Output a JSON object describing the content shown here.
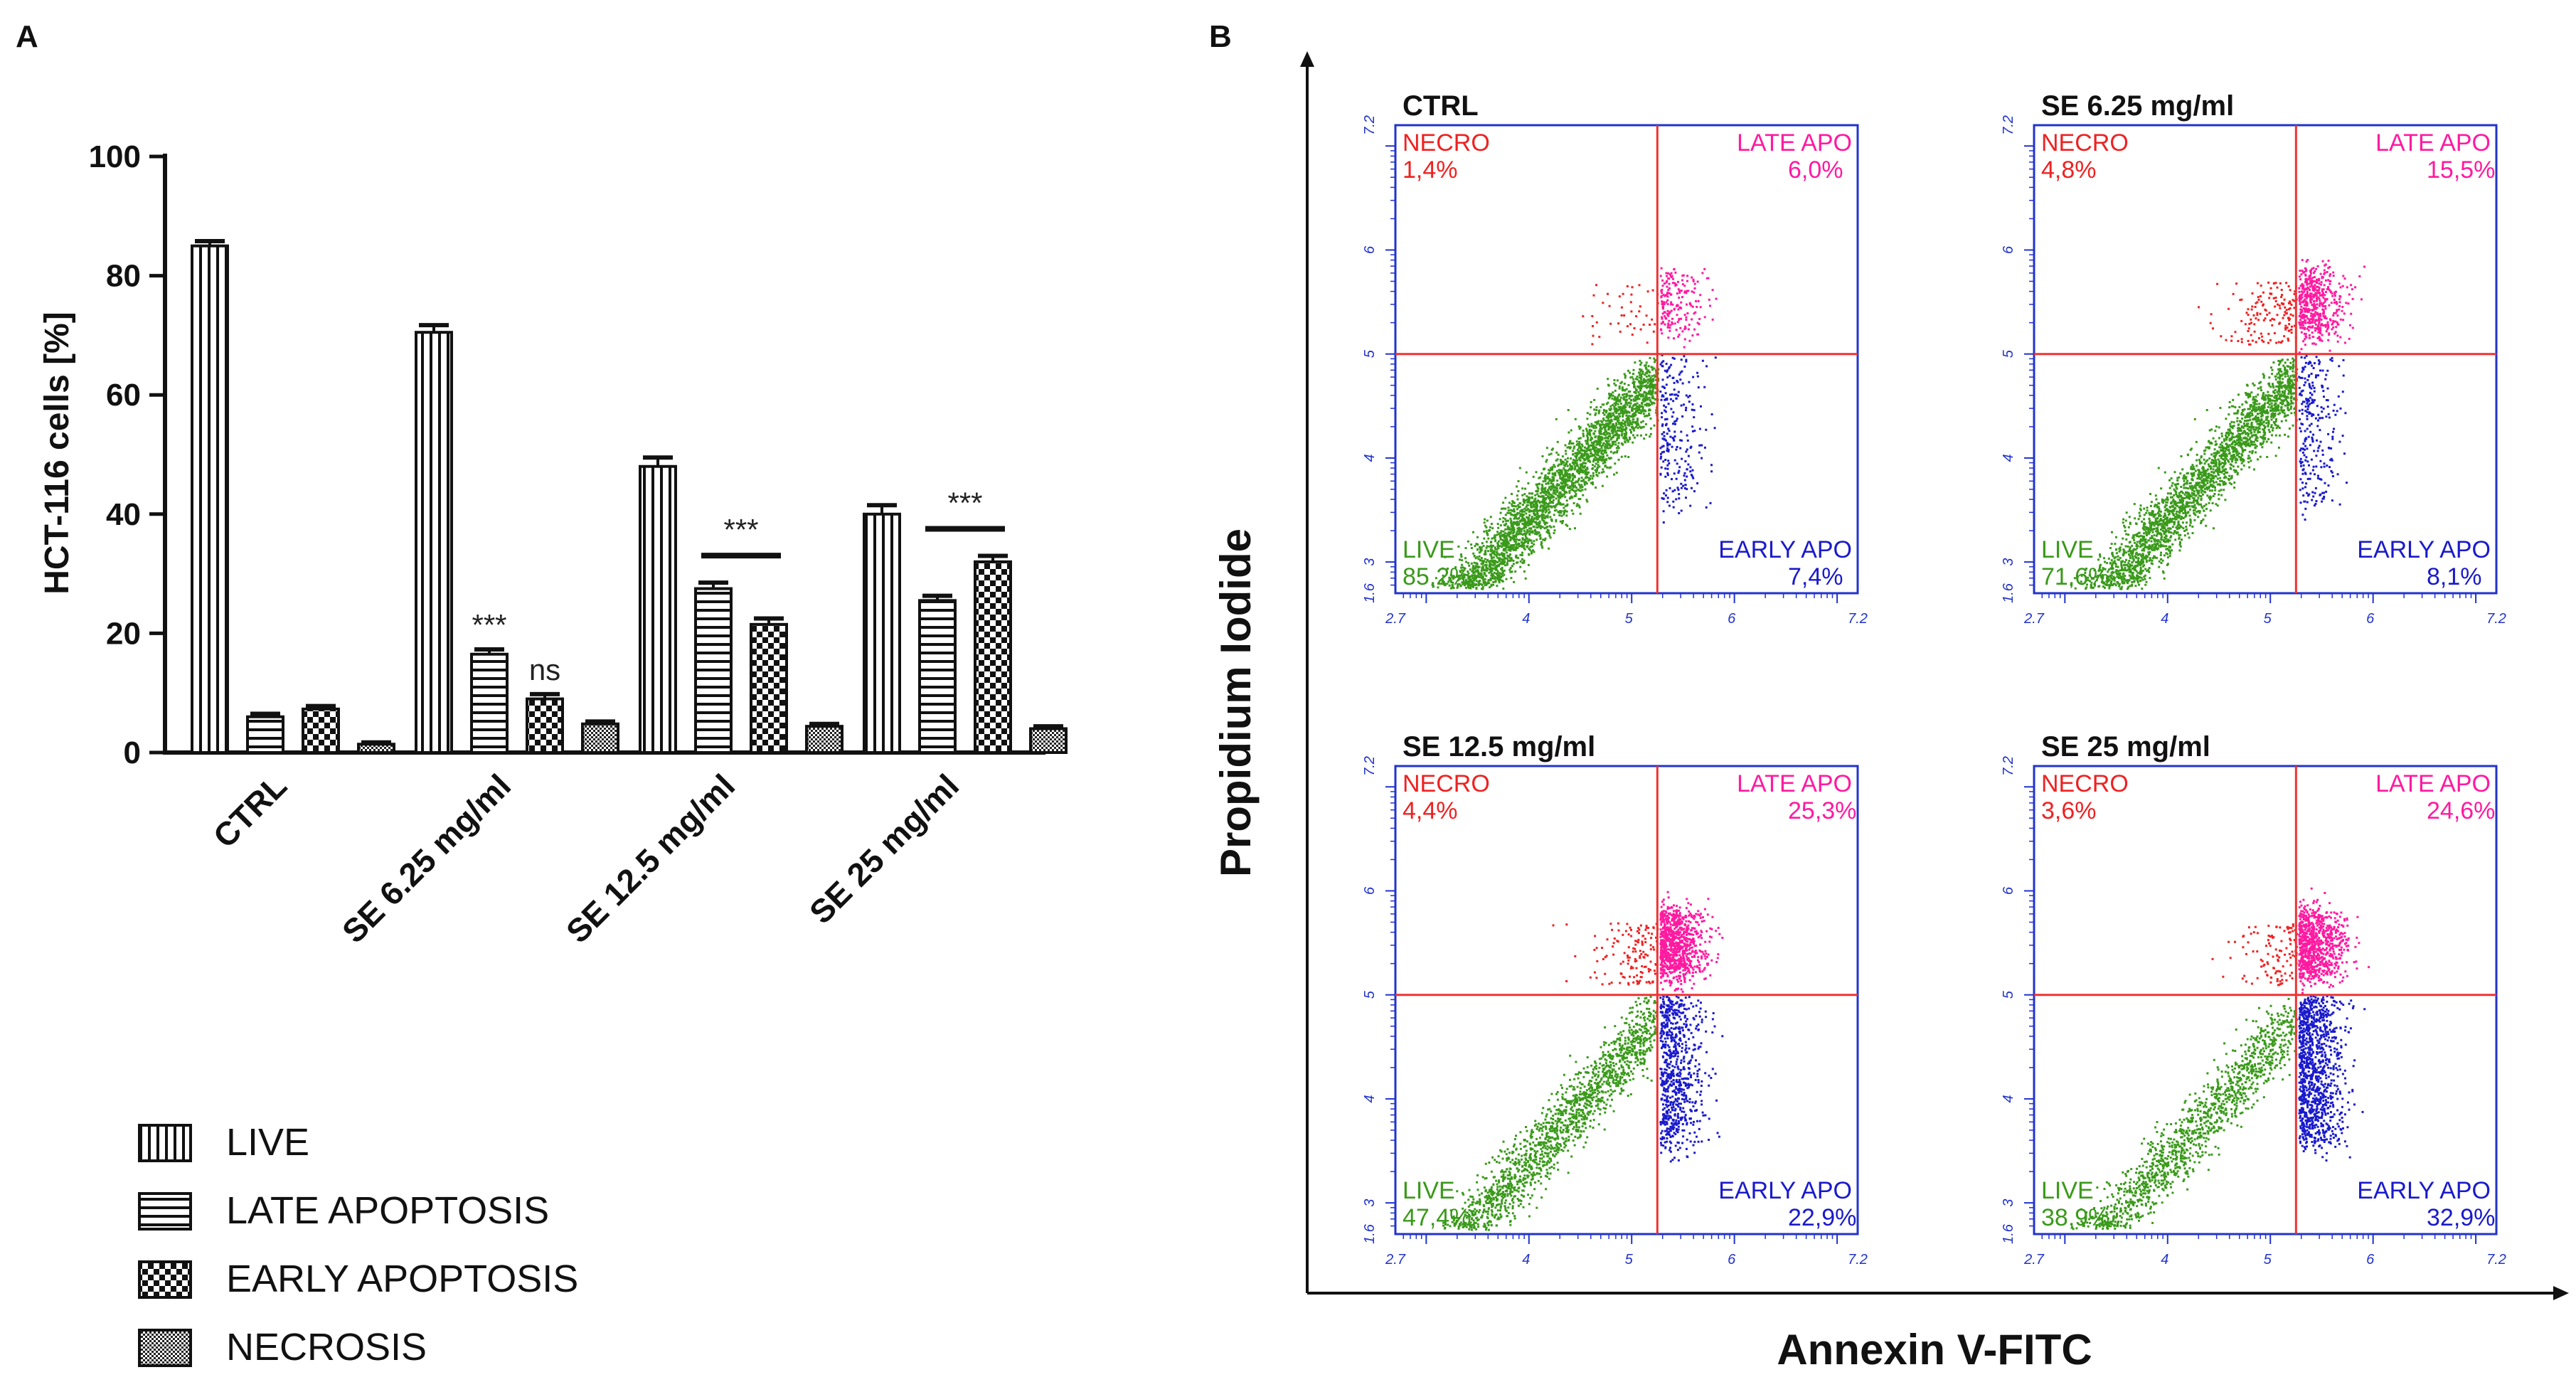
{
  "panels": {
    "a_label": "A",
    "b_label": "B"
  },
  "chart_data": [
    {
      "type": "bar",
      "title": "",
      "xlabel": "",
      "ylabel": "HCT-116 cells [%]",
      "ylim": [
        0,
        100
      ],
      "yticks": [
        "0",
        "20",
        "40",
        "60",
        "80",
        "100"
      ],
      "categories": [
        "CTRL",
        "SE 6.25 mg/ml",
        "SE 12.5 mg/ml",
        "SE 25 mg/ml"
      ],
      "series": [
        {
          "name": "LIVE",
          "pattern": "vertical",
          "values": [
            85,
            70.5,
            48,
            40
          ],
          "errors": [
            0.8,
            1.2,
            1.5,
            1.5
          ]
        },
        {
          "name": "LATE APOPTOSIS",
          "pattern": "horizontal",
          "values": [
            6,
            16.5,
            27.5,
            25.5
          ],
          "errors": [
            0.5,
            0.8,
            1.0,
            0.8
          ]
        },
        {
          "name": "EARLY APOPTOSIS",
          "pattern": "checker",
          "values": [
            7.3,
            9,
            21.5,
            32
          ],
          "errors": [
            0.5,
            0.8,
            1.0,
            1.0
          ]
        },
        {
          "name": "NECROSIS",
          "pattern": "fine",
          "values": [
            1.4,
            4.8,
            4.4,
            4
          ],
          "errors": [
            0.3,
            0.4,
            0.4,
            0.4
          ]
        }
      ],
      "annotations": [
        {
          "category": 1,
          "series": 1,
          "text": "***"
        },
        {
          "category": 1,
          "series": 2,
          "text": "ns"
        },
        {
          "category": 2,
          "series_span": [
            1,
            2
          ],
          "text": "***"
        },
        {
          "category": 3,
          "series_span": [
            1,
            2
          ],
          "text": "***"
        }
      ]
    },
    {
      "type": "scatter",
      "xlabel": "Annexin V-FITC",
      "ylabel": "Propidium Iodide",
      "axis_range": [
        2.7,
        7.2
      ],
      "gate": {
        "x": 5.25,
        "y": 5.0
      },
      "tick_labels": [
        "2.7",
        "4",
        "5",
        "6",
        "7.2"
      ],
      "y_tick_labels": [
        "1.6",
        "3",
        "4",
        "5",
        "6",
        "7.2"
      ],
      "colors": {
        "live": "#3a9a1a",
        "early": "#1a1acc",
        "late": "#ff1aa0",
        "necro": "#ee2222",
        "frame": "#2233cc",
        "gate": "#ee3333"
      },
      "plots": [
        {
          "title": "CTRL",
          "necro_label": "NECRO",
          "necro": "1,4%",
          "late_label": "LATE APO",
          "late": "6,0%",
          "live_label": "LIVE",
          "live": "85,2%",
          "early_label": "EARLY APO",
          "early": "7,4%"
        },
        {
          "title": "SE 6.25 mg/ml",
          "necro_label": "NECRO",
          "necro": "4,8%",
          "late_label": "LATE APO",
          "late": "15,5%",
          "live_label": "LIVE",
          "live": "71,6%",
          "early_label": "EARLY APO",
          "early": "8,1%"
        },
        {
          "title": "SE 12.5 mg/ml",
          "necro_label": "NECRO",
          "necro": "4,4%",
          "late_label": "LATE APO",
          "late": "25,3%",
          "live_label": "LIVE",
          "live": "47,4%",
          "early_label": "EARLY APO",
          "early": "22,9%"
        },
        {
          "title": "SE 25 mg/ml",
          "necro_label": "NECRO",
          "necro": "3,6%",
          "late_label": "LATE APO",
          "late": "24,6%",
          "live_label": "LIVE",
          "live": "38,9%",
          "early_label": "EARLY APO",
          "early": "32,9%"
        }
      ]
    }
  ]
}
